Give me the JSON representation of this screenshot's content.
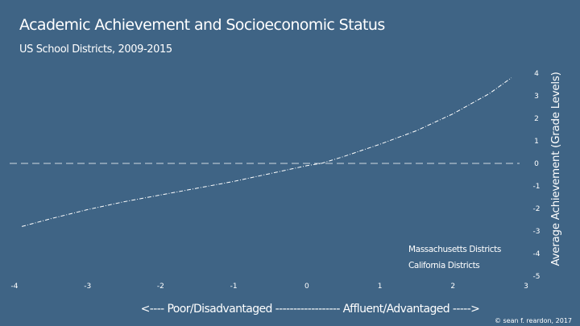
{
  "header": {
    "title": "Academic Achievement and Socioeconomic Status",
    "subtitle": "US School Districts, 2009-2015"
  },
  "credit": "© sean f. reardon, 2017",
  "chart_data": {
    "type": "line",
    "xlabel": "<---- Poor/Disadvantaged ------------------ Affluent/Advantaged ----->",
    "ylabel": "Average Achievement (Grade Levels)",
    "xlim": [
      -4,
      3
    ],
    "ylim": [
      -5,
      4.5
    ],
    "x_ticks": [
      "-4",
      "-3",
      "-2",
      "-1",
      "0",
      "1",
      "2",
      "3"
    ],
    "y_ticks": [
      "4",
      "3",
      "2",
      "1",
      "0",
      "-1",
      "-2",
      "-3",
      "-4",
      "-5"
    ],
    "reference_line": {
      "y": 0,
      "style": "dashed"
    },
    "legend": {
      "placement": "bottom-right",
      "entries": [
        "Massachusetts Districts",
        "California Districts"
      ]
    },
    "series": [
      {
        "x": [
          -3.9,
          -3.5,
          -3.0,
          -2.5,
          -2.0,
          -1.5,
          -1.0,
          -0.5,
          0.0,
          0.2,
          0.5,
          1.0,
          1.5,
          2.0,
          2.5,
          2.8
        ],
        "y": [
          -2.8,
          -2.45,
          -2.05,
          -1.7,
          -1.4,
          -1.1,
          -0.8,
          -0.45,
          -0.1,
          0.0,
          0.3,
          0.85,
          1.45,
          2.2,
          3.1,
          3.8
        ]
      }
    ],
    "colors": {
      "background": "#3f6485",
      "line": "#ffffff"
    }
  }
}
